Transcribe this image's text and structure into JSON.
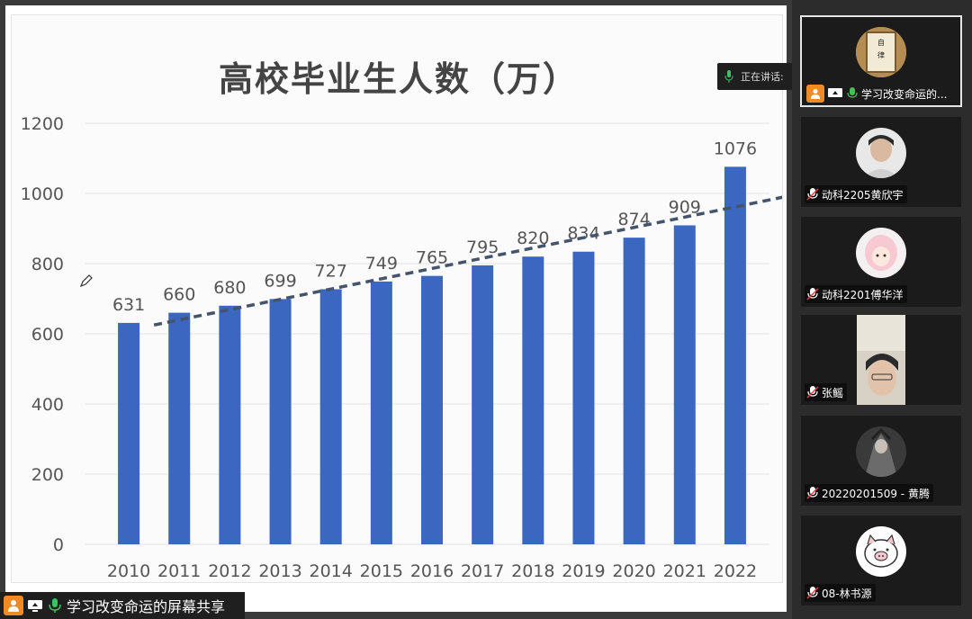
{
  "share": {
    "status_label": "正在讲话:",
    "bar_label": "学习改变命运的屏幕共享"
  },
  "chart_data": {
    "type": "bar",
    "title": "高校毕业生人数（万）",
    "categories": [
      "2010",
      "2011",
      "2012",
      "2013",
      "2014",
      "2015",
      "2016",
      "2017",
      "2018",
      "2019",
      "2020",
      "2021",
      "2022"
    ],
    "values": [
      631,
      660,
      680,
      699,
      727,
      749,
      765,
      795,
      820,
      834,
      874,
      909,
      1076
    ],
    "ylim": [
      0,
      1200
    ],
    "yticks": [
      "0",
      "200",
      "400",
      "600",
      "800",
      "1000",
      "1200"
    ],
    "grid": true,
    "trendline": true,
    "bar_color": "#3b67c0",
    "trend_color": "#44546a"
  },
  "participants": [
    {
      "name": "学习改变命运的...",
      "avatar": "calligraphy-avatar",
      "active": true,
      "mic": "on"
    },
    {
      "name": "动科2205黄欣宇",
      "avatar": "person-avatar",
      "active": false,
      "mic": "off"
    },
    {
      "name": "动科2201傅华洋",
      "avatar": "anime-avatar",
      "active": false,
      "mic": "off"
    },
    {
      "name": "张鳐",
      "avatar": "video-feed",
      "active": false,
      "mic": "off"
    },
    {
      "name": "20220201509 - 黄腾",
      "avatar": "character-avatar",
      "active": false,
      "mic": "off"
    },
    {
      "name": "08-林书源",
      "avatar": "pig-avatar",
      "active": false,
      "mic": "off"
    }
  ],
  "colors": {
    "panel_bg": "#2c2c2c",
    "tile_bg": "#1b1b1b",
    "user_badge": "#f08a24",
    "mic_green": "#3ec35a"
  }
}
